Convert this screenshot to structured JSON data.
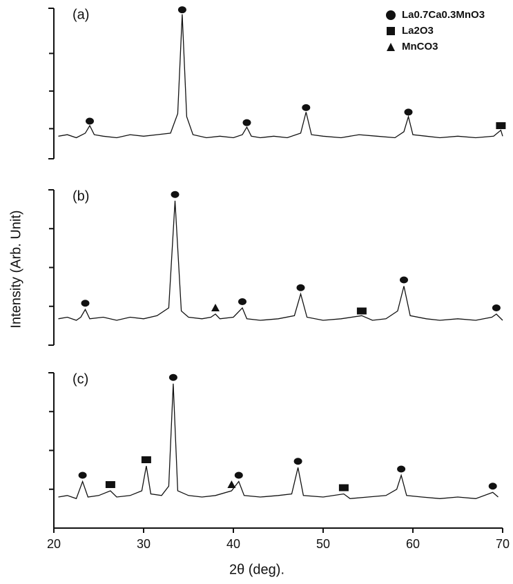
{
  "x_axis": {
    "label": "2θ (deg).",
    "xlim": [
      20,
      70
    ],
    "xticks": [
      20,
      30,
      40,
      50,
      60,
      70
    ]
  },
  "y_label": "Intensity (Arb. Unit)",
  "legend": [
    {
      "name": "La0.7Ca0.3MnO3",
      "marker": "circle"
    },
    {
      "name": "La2O3",
      "marker": "square"
    },
    {
      "name": "MnCO3",
      "marker": "triangle"
    }
  ],
  "chart_data": [
    {
      "type": "line",
      "label": "(a)",
      "color": "#111111",
      "ylim": [
        0,
        100
      ],
      "yticks": [
        20,
        45,
        70
      ],
      "x": [
        20.5,
        21.5,
        22.5,
        23.5,
        24,
        24.5,
        25.5,
        27,
        28.5,
        30,
        31.5,
        33,
        33.8,
        34.3,
        34.8,
        35.5,
        37,
        38.5,
        40,
        41,
        41.5,
        42,
        43,
        44.5,
        46,
        47.5,
        48.1,
        48.7,
        50,
        52,
        54,
        56,
        58,
        59,
        59.5,
        60,
        61.5,
        63,
        65,
        67,
        69,
        69.8,
        70
      ],
      "values": [
        15,
        16,
        14,
        17,
        22,
        16,
        15,
        14,
        16,
        15,
        16,
        17,
        30,
        96,
        28,
        16,
        14,
        15,
        14,
        16,
        21,
        15,
        14,
        15,
        14,
        17,
        31,
        16,
        15,
        14,
        16,
        15,
        14,
        18,
        28,
        16,
        15,
        14,
        15,
        14,
        15,
        19,
        15
      ],
      "peak_series": [
        {
          "x": [
            24,
            34.3,
            41.5,
            48.1,
            59.5
          ],
          "values": [
            25,
            99,
            24,
            34,
            31
          ]
        },
        {
          "x": [
            69.8
          ],
          "values": [
            22
          ]
        },
        {
          "x": [],
          "values": []
        }
      ]
    },
    {
      "type": "line",
      "label": "(b)",
      "color": "#111111",
      "ylim": [
        0,
        100
      ],
      "yticks": [
        25,
        50,
        75
      ],
      "x": [
        20.5,
        21.5,
        22.5,
        23,
        23.5,
        24,
        25.5,
        27,
        28.5,
        30,
        31.5,
        32.8,
        33.5,
        34.2,
        35,
        36.5,
        37.5,
        38,
        38.5,
        40,
        41,
        41.5,
        43,
        45,
        46.8,
        47.5,
        48.2,
        50,
        52,
        54.3,
        55.5,
        57,
        58.3,
        59,
        59.7,
        61.5,
        63,
        65,
        67,
        68.8,
        69.3,
        70
      ],
      "values": [
        17,
        18,
        16,
        18,
        23,
        17,
        18,
        16,
        18,
        17,
        19,
        24,
        93,
        22,
        18,
        17,
        18,
        20,
        17,
        18,
        24,
        17,
        16,
        17,
        19,
        33,
        18,
        16,
        17,
        19,
        16,
        17,
        22,
        38,
        19,
        17,
        16,
        17,
        16,
        18,
        20,
        16
      ],
      "peak_series": [
        {
          "x": [
            23.5,
            33.5,
            41,
            47.5,
            59,
            69.3
          ],
          "values": [
            27,
            97,
            28,
            37,
            42,
            24
          ]
        },
        {
          "x": [
            54.3
          ],
          "values": [
            22
          ]
        },
        {
          "x": [
            38
          ],
          "values": [
            24
          ]
        }
      ]
    },
    {
      "type": "line",
      "label": "(c)",
      "color": "#111111",
      "ylim": [
        0,
        100
      ],
      "yticks": [
        25,
        50,
        75
      ],
      "x": [
        20.5,
        21.5,
        22.5,
        23.2,
        23.8,
        25,
        26.3,
        27,
        28.5,
        29.8,
        30.3,
        30.8,
        32,
        32.8,
        33.3,
        33.8,
        35,
        36.5,
        38,
        39.8,
        40.6,
        41.2,
        43,
        45,
        46.5,
        47.2,
        47.8,
        50,
        52.3,
        53,
        55,
        57,
        58.2,
        58.7,
        59.3,
        61,
        63,
        65,
        67,
        68.9,
        69.5
      ],
      "values": [
        20,
        21,
        19,
        30,
        20,
        21,
        24,
        20,
        21,
        24,
        40,
        22,
        21,
        27,
        93,
        24,
        21,
        20,
        21,
        24,
        30,
        21,
        20,
        21,
        22,
        39,
        21,
        20,
        22,
        19,
        20,
        21,
        25,
        34,
        21,
        20,
        19,
        20,
        19,
        23,
        20
      ],
      "peak_series": [
        {
          "x": [
            23.2,
            33.3,
            40.6,
            47.2,
            58.7,
            68.9
          ],
          "values": [
            34,
            97,
            34,
            43,
            38,
            27
          ]
        },
        {
          "x": [
            26.3,
            30.3,
            52.3
          ],
          "values": [
            28,
            44,
            26
          ]
        },
        {
          "x": [
            39.8
          ],
          "values": [
            28
          ]
        }
      ]
    }
  ]
}
